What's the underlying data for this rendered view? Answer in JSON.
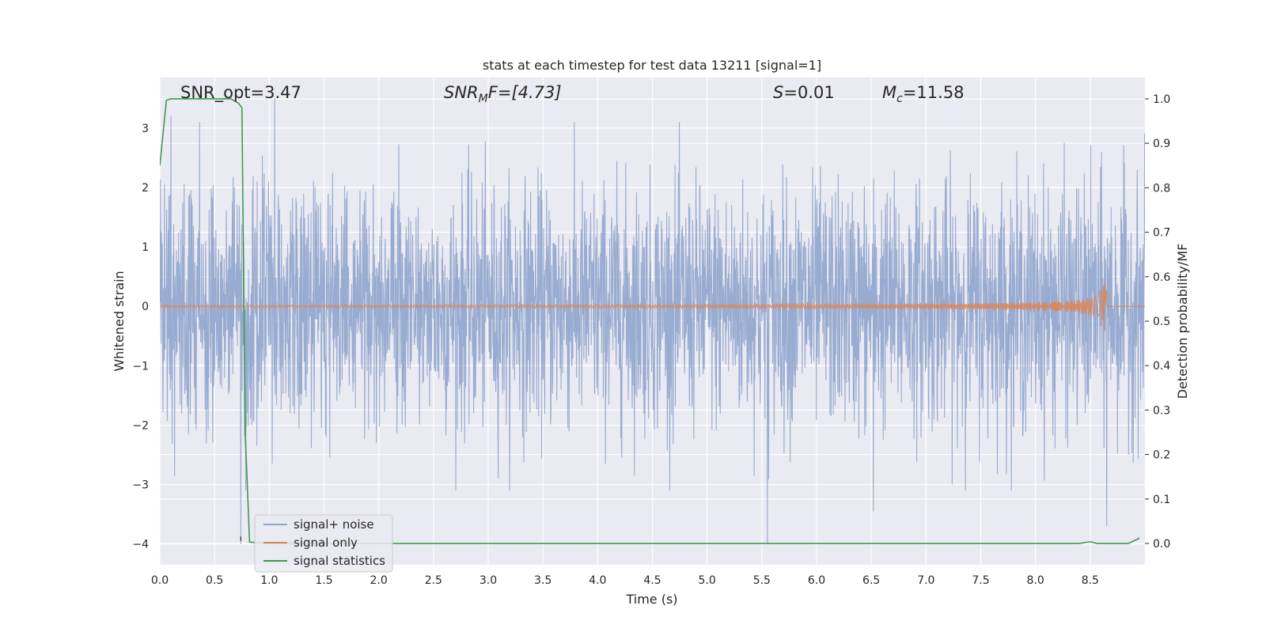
{
  "chart_data": {
    "type": "line",
    "title": "stats at each timestep for test data 13211 [signal=1]",
    "xlabel": "Time (s)",
    "ylabel": "Whitened strain",
    "ylabel_right": "Detection probability/MF",
    "xlim": [
      0.0,
      9.0
    ],
    "ylim": [
      -4.35,
      3.85
    ],
    "ylim_right": [
      -0.048,
      1.048
    ],
    "x_ticks": [
      "0.0",
      "0.5",
      "1.0",
      "1.5",
      "2.0",
      "2.5",
      "3.0",
      "3.5",
      "4.0",
      "4.5",
      "5.0",
      "5.5",
      "6.0",
      "6.5",
      "7.0",
      "7.5",
      "8.0",
      "8.5"
    ],
    "y_ticks": [
      "3",
      "2",
      "1",
      "0",
      "−1",
      "−2",
      "−3",
      "−4"
    ],
    "y_ticks_right": [
      "1.0",
      "0.9",
      "0.8",
      "0.7",
      "0.6",
      "0.5",
      "0.4",
      "0.3",
      "0.2",
      "0.1",
      "0.0"
    ],
    "grid": true,
    "legend_placement": "lower-left",
    "annotations": {
      "snr_opt": "SNR_opt=3.47",
      "snr_mf_symbol": "SNR",
      "snr_mf_sub": "M",
      "snr_mf_rest": "F=[4.73]",
      "s_symbol": "S",
      "s_rest": "=0.01",
      "mc_symbol": "M",
      "mc_sub": "c",
      "mc_rest": "=11.58"
    },
    "series": [
      {
        "name": "signal+ noise",
        "color": "#8fa4cc",
        "kind": "noise",
        "approx_range": [
          -4.0,
          3.5
        ],
        "notable_extremes": [
          {
            "x": 0.74,
            "y": -4.0
          },
          {
            "x": 5.55,
            "y": -4.0
          },
          {
            "x": 6.52,
            "y": -3.45
          },
          {
            "x": 8.65,
            "y": -3.7
          },
          {
            "x": 1.05,
            "y": 3.5
          },
          {
            "x": 0.1,
            "y": 3.2
          }
        ]
      },
      {
        "name": "signal only",
        "color": "#dd8452",
        "kind": "chirp",
        "peak_time": 8.65,
        "peak_amplitude": 0.45
      },
      {
        "name": "signal statistics",
        "color": "#3f9b4e",
        "axis": "right",
        "x": [
          0.0,
          0.06,
          0.1,
          0.4,
          0.65,
          0.72,
          0.75,
          0.78,
          0.82,
          1.0,
          8.4,
          8.5,
          8.56,
          8.85,
          8.95
        ],
        "y": [
          0.85,
          0.997,
          1.0,
          1.0,
          1.0,
          0.99,
          0.98,
          0.25,
          0.003,
          0.0,
          0.0,
          0.004,
          0.0,
          0.0,
          0.012
        ]
      }
    ],
    "vertical_marker": {
      "x": 0.74,
      "color": "#333333"
    }
  }
}
